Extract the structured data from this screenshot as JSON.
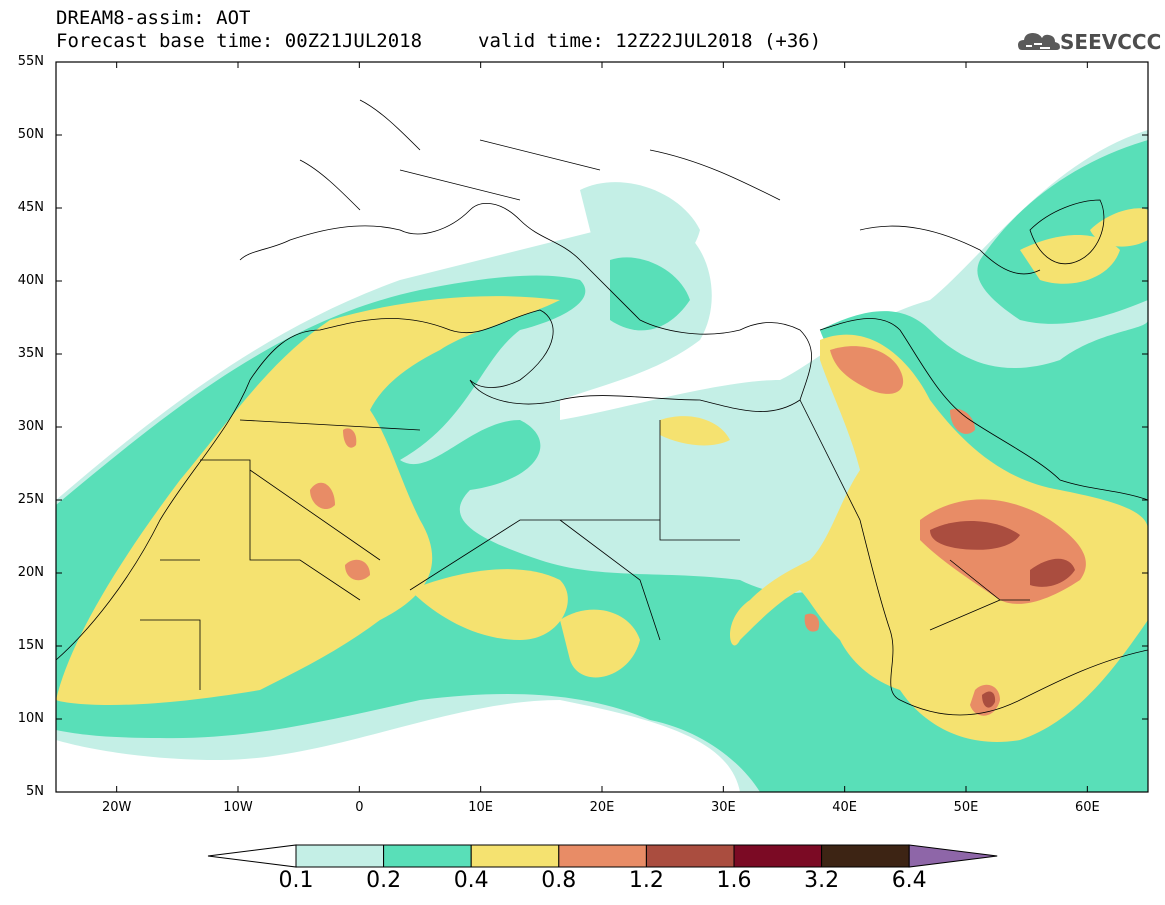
{
  "header": {
    "line1": "DREAM8-assim: AOT",
    "line2": "Forecast base time: 00Z21JUL2018",
    "line3": "valid time: 12Z22JUL2018 (+36)"
  },
  "logo": {
    "text": "SEEVCCC",
    "icon": "cloud-icon"
  },
  "map": {
    "lon_range": [
      -25,
      65
    ],
    "lat_range": [
      5,
      55
    ],
    "y_ticks": [
      "55N",
      "50N",
      "45N",
      "40N",
      "35N",
      "30N",
      "25N",
      "20N",
      "15N",
      "10N",
      "5N"
    ],
    "x_ticks": [
      "20W",
      "10W",
      "0",
      "10E",
      "20E",
      "30E",
      "40E",
      "50E",
      "60E"
    ]
  },
  "colorbar": {
    "labels": [
      "0.1",
      "0.2",
      "0.4",
      "0.8",
      "1.2",
      "1.6",
      "3.2",
      "6.4"
    ],
    "colors": [
      "#ffffff",
      "#c4efe6",
      "#59dfb8",
      "#f5e270",
      "#e88c66",
      "#aa4d3f",
      "#7b0a24",
      "#3d2414",
      "#8e66a8"
    ]
  }
}
